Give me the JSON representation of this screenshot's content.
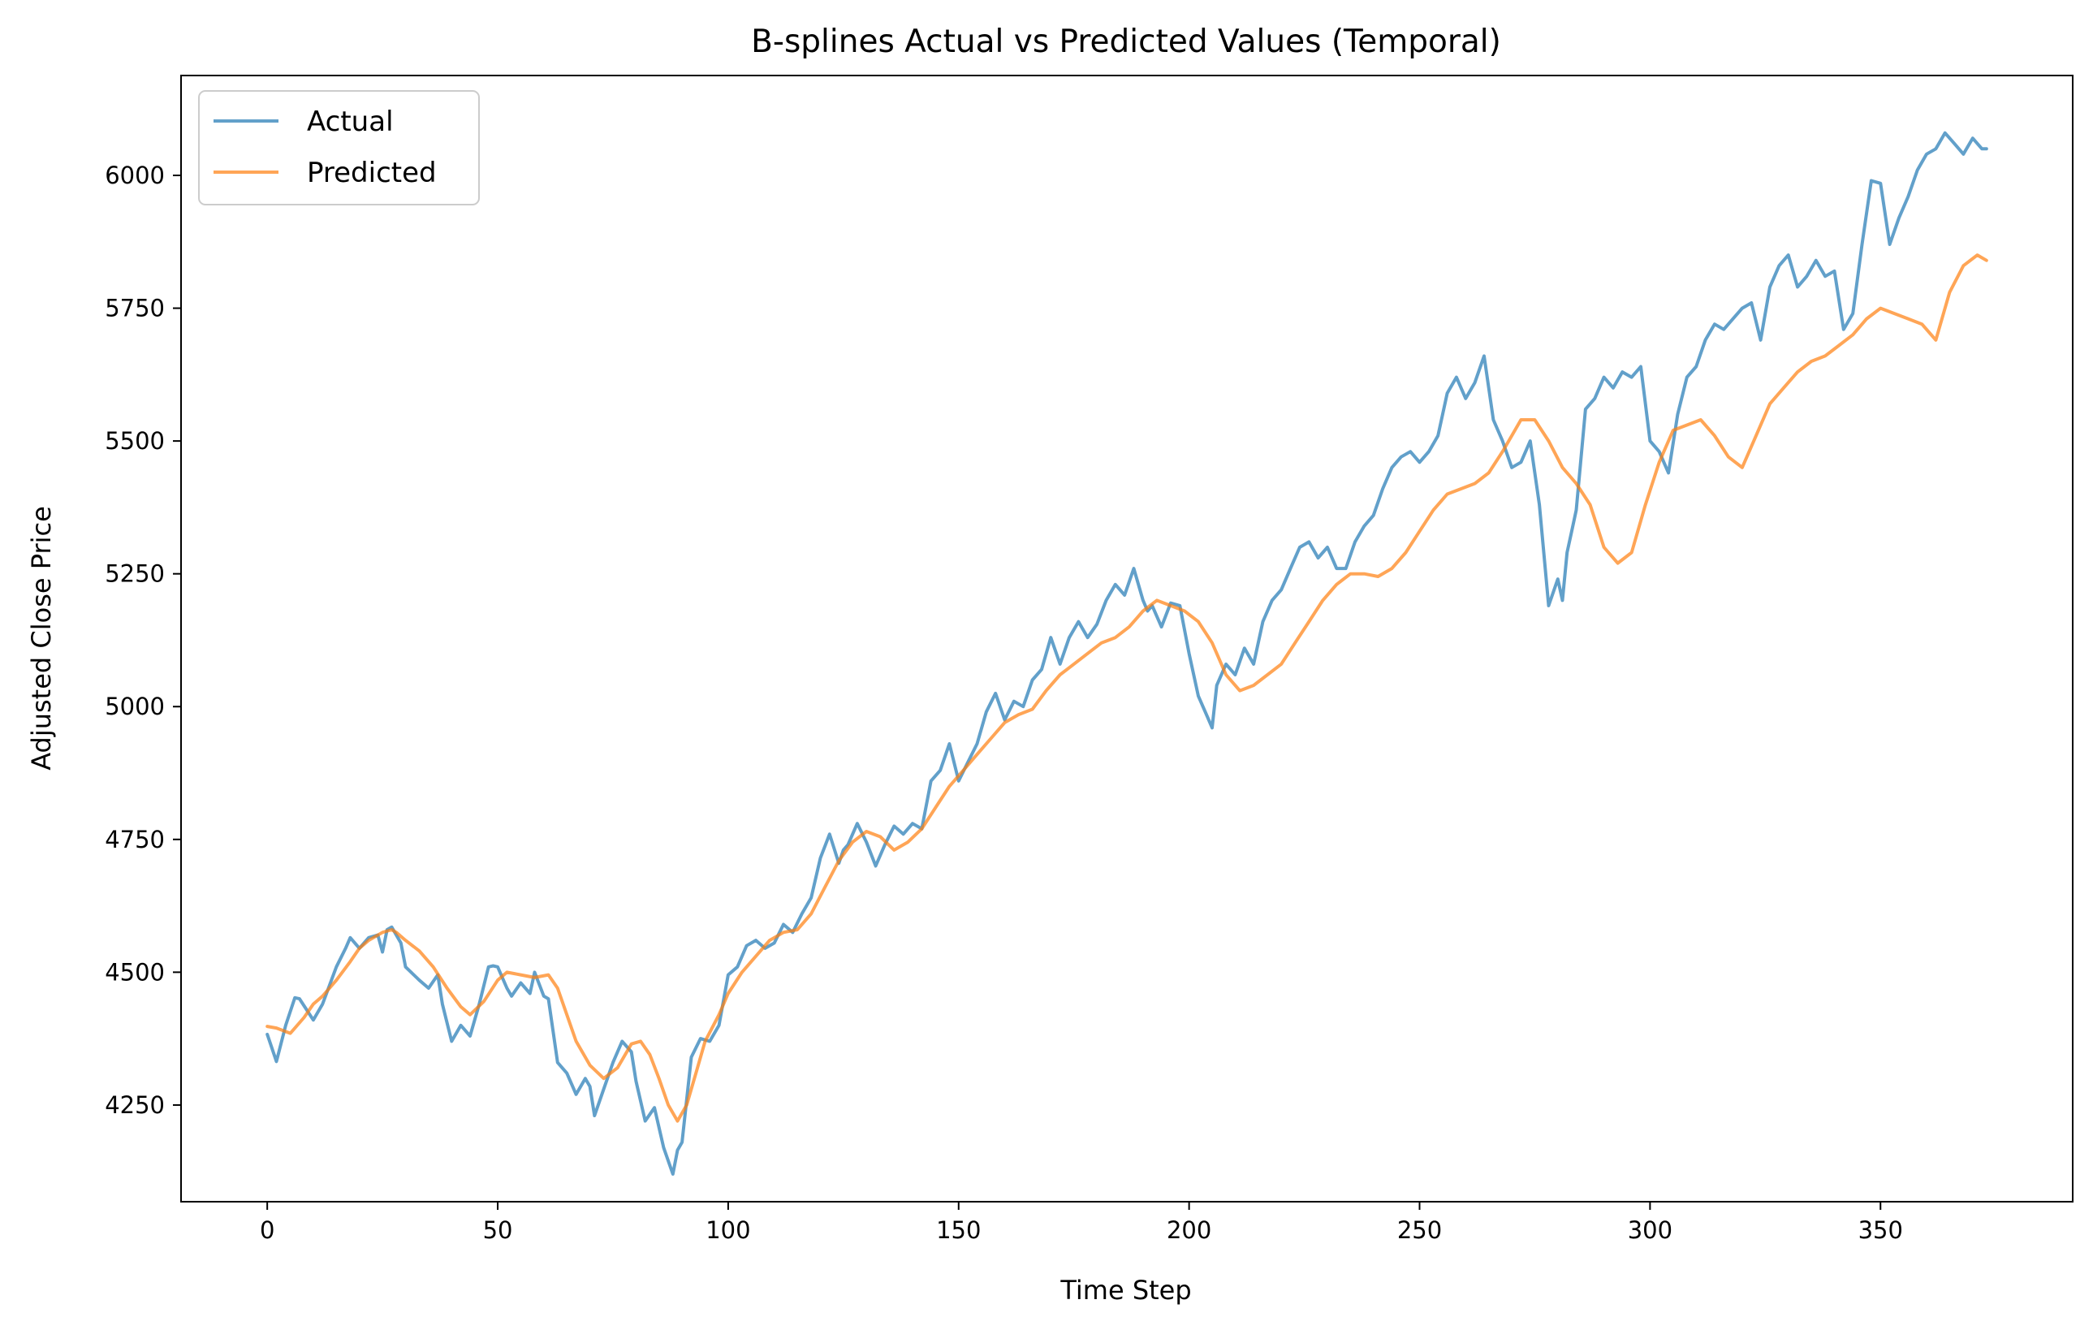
{
  "chart_data": {
    "type": "line",
    "title": "B-splines Actual vs Predicted Values (Temporal)",
    "xlabel": "Time Step",
    "ylabel": "Adjusted Close Price",
    "xlim": [
      -18.7,
      391.7
    ],
    "ylim": [
      4068,
      6188
    ],
    "xticks": [
      0,
      50,
      100,
      150,
      200,
      250,
      300,
      350
    ],
    "yticks": [
      4250,
      4500,
      4750,
      5000,
      5250,
      5500,
      5750,
      6000
    ],
    "grid": false,
    "legend_position": "top-left",
    "colors": {
      "actual": "#1f77b4",
      "predicted": "#ff7f0e"
    },
    "series": [
      {
        "name": "Actual",
        "x": [
          0,
          2,
          4,
          6,
          7,
          10,
          12,
          15,
          17,
          18,
          20,
          22,
          24,
          25,
          26,
          27,
          29,
          30,
          33,
          35,
          37,
          38,
          40,
          42,
          44,
          46,
          48,
          49,
          50,
          52,
          53,
          55,
          57,
          58,
          60,
          61,
          63,
          65,
          67,
          69,
          70,
          71,
          73,
          75,
          77,
          79,
          80,
          82,
          84,
          86,
          88,
          89,
          90,
          92,
          94,
          96,
          98,
          100,
          102,
          104,
          106,
          108,
          110,
          112,
          114,
          116,
          118,
          120,
          122,
          124,
          125,
          126,
          128,
          130,
          132,
          134,
          136,
          138,
          140,
          142,
          144,
          146,
          148,
          150,
          152,
          154,
          156,
          158,
          160,
          162,
          164,
          166,
          168,
          170,
          172,
          174,
          176,
          178,
          180,
          182,
          184,
          186,
          188,
          190,
          191,
          192,
          194,
          196,
          198,
          200,
          202,
          204,
          205,
          206,
          208,
          210,
          212,
          214,
          216,
          218,
          220,
          222,
          224,
          226,
          228,
          230,
          232,
          234,
          236,
          238,
          240,
          242,
          244,
          246,
          248,
          250,
          252,
          254,
          256,
          258,
          260,
          262,
          264,
          266,
          268,
          270,
          272,
          274,
          276,
          278,
          280,
          281,
          282,
          283,
          284,
          286,
          288,
          290,
          292,
          294,
          296,
          298,
          300,
          302,
          304,
          306,
          308,
          310,
          312,
          314,
          316,
          318,
          320,
          322,
          324,
          326,
          328,
          330,
          332,
          334,
          336,
          338,
          340,
          342,
          344,
          346,
          348,
          350,
          352,
          354,
          356,
          358,
          360,
          362,
          364,
          366,
          368,
          370,
          372,
          373
        ],
        "values": [
          4383,
          4332,
          4400,
          4452,
          4450,
          4410,
          4440,
          4510,
          4545,
          4565,
          4545,
          4565,
          4570,
          4538,
          4580,
          4585,
          4555,
          4510,
          4485,
          4470,
          4495,
          4440,
          4370,
          4400,
          4380,
          4440,
          4510,
          4512,
          4510,
          4470,
          4455,
          4480,
          4460,
          4500,
          4455,
          4450,
          4330,
          4310,
          4270,
          4300,
          4285,
          4230,
          4280,
          4330,
          4370,
          4350,
          4295,
          4220,
          4245,
          4170,
          4120,
          4165,
          4180,
          4340,
          4375,
          4370,
          4400,
          4495,
          4510,
          4550,
          4560,
          4545,
          4555,
          4590,
          4575,
          4610,
          4640,
          4715,
          4760,
          4705,
          4730,
          4740,
          4780,
          4745,
          4700,
          4740,
          4775,
          4760,
          4780,
          4770,
          4860,
          4880,
          4930,
          4860,
          4895,
          4930,
          4990,
          5025,
          4975,
          5010,
          5000,
          5050,
          5070,
          5130,
          5080,
          5130,
          5160,
          5130,
          5155,
          5200,
          5230,
          5210,
          5260,
          5200,
          5180,
          5190,
          5150,
          5195,
          5190,
          5100,
          5020,
          4980,
          4960,
          5040,
          5080,
          5060,
          5110,
          5080,
          5160,
          5200,
          5220,
          5260,
          5300,
          5310,
          5280,
          5300,
          5260,
          5260,
          5310,
          5340,
          5360,
          5410,
          5450,
          5470,
          5480,
          5460,
          5480,
          5510,
          5590,
          5620,
          5580,
          5610,
          5660,
          5540,
          5500,
          5450,
          5460,
          5500,
          5380,
          5190,
          5240,
          5200,
          5290,
          5330,
          5370,
          5560,
          5580,
          5620,
          5600,
          5630,
          5620,
          5640,
          5500,
          5480,
          5440,
          5550,
          5620,
          5640,
          5690,
          5720,
          5710,
          5730,
          5750,
          5760,
          5690,
          5790,
          5830,
          5850,
          5790,
          5810,
          5840,
          5810,
          5820,
          5710,
          5740,
          5870,
          5990,
          5985,
          5870,
          5920,
          5960,
          6010,
          6040,
          6050,
          6080,
          6060,
          6040,
          6070,
          6050,
          6050
        ]
      },
      {
        "name": "Predicted",
        "x": [
          0,
          2,
          5,
          8,
          10,
          12,
          15,
          18,
          20,
          22,
          25,
          27,
          28,
          30,
          33,
          36,
          39,
          42,
          44,
          47,
          50,
          52,
          55,
          58,
          61,
          63,
          65,
          67,
          70,
          73,
          76,
          79,
          81,
          83,
          85,
          87,
          89,
          91,
          93,
          95,
          98,
          100,
          103,
          106,
          109,
          112,
          115,
          118,
          121,
          124,
          127,
          130,
          133,
          136,
          139,
          142,
          145,
          148,
          151,
          154,
          157,
          160,
          163,
          166,
          169,
          172,
          175,
          178,
          181,
          184,
          187,
          190,
          193,
          196,
          199,
          202,
          205,
          208,
          211,
          214,
          217,
          220,
          223,
          226,
          229,
          232,
          235,
          238,
          241,
          244,
          247,
          250,
          253,
          256,
          259,
          262,
          265,
          268,
          270,
          272,
          275,
          278,
          281,
          284,
          287,
          290,
          293,
          296,
          299,
          302,
          305,
          308,
          311,
          314,
          317,
          320,
          323,
          326,
          329,
          332,
          335,
          338,
          341,
          344,
          347,
          350,
          353,
          356,
          359,
          362,
          365,
          368,
          371,
          373
        ],
        "values": [
          4398,
          4395,
          4385,
          4415,
          4440,
          4455,
          4485,
          4520,
          4545,
          4560,
          4575,
          4580,
          4575,
          4560,
          4540,
          4510,
          4470,
          4435,
          4420,
          4445,
          4485,
          4500,
          4495,
          4490,
          4495,
          4470,
          4420,
          4370,
          4325,
          4300,
          4320,
          4365,
          4370,
          4345,
          4300,
          4250,
          4220,
          4250,
          4310,
          4370,
          4420,
          4460,
          4500,
          4530,
          4560,
          4575,
          4580,
          4610,
          4660,
          4710,
          4745,
          4765,
          4755,
          4730,
          4745,
          4770,
          4810,
          4850,
          4880,
          4910,
          4940,
          4970,
          4985,
          4995,
          5030,
          5060,
          5080,
          5100,
          5120,
          5130,
          5150,
          5180,
          5200,
          5190,
          5180,
          5160,
          5120,
          5060,
          5030,
          5040,
          5060,
          5080,
          5120,
          5160,
          5200,
          5230,
          5250,
          5250,
          5245,
          5260,
          5290,
          5330,
          5370,
          5400,
          5410,
          5420,
          5440,
          5480,
          5510,
          5540,
          5540,
          5500,
          5450,
          5420,
          5380,
          5300,
          5270,
          5290,
          5380,
          5460,
          5520,
          5530,
          5540,
          5510,
          5470,
          5450,
          5510,
          5570,
          5600,
          5630,
          5650,
          5660,
          5680,
          5700,
          5730,
          5750,
          5740,
          5730,
          5720,
          5690,
          5780,
          5830,
          5850,
          5840
        ]
      }
    ]
  }
}
